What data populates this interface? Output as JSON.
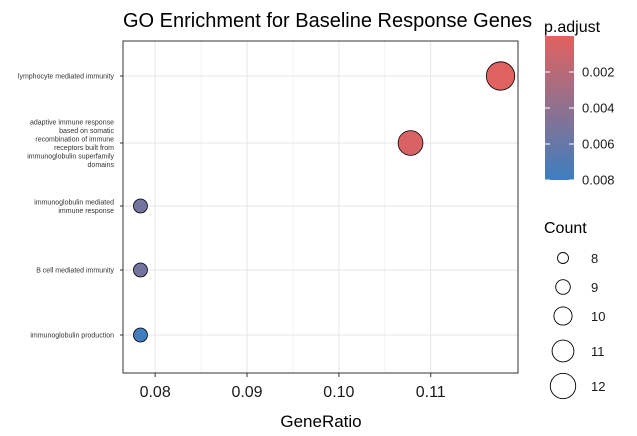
{
  "chart_data": {
    "type": "scatter",
    "title": "GO Enrichment for Baseline Response Genes",
    "xlabel": "GeneRatio",
    "ylabel": "",
    "xlim": [
      0.0765,
      0.1195
    ],
    "xticks": [
      {
        "value": 0.08,
        "label": "0.08"
      },
      {
        "value": 0.09,
        "label": "0.09"
      },
      {
        "value": 0.1,
        "label": "0.10"
      },
      {
        "value": 0.11,
        "label": "0.11"
      }
    ],
    "categories": [
      "lymphocyte mediated immunity",
      "adaptive immune response based on somatic recombination of immune receptors built from immunoglobulin superfamily domains",
      "immunoglobulin mediated immune response",
      "B cell mediated immunity",
      "immunoglobulin production"
    ],
    "category_lines": [
      [
        "lymphocyte mediated immunity"
      ],
      [
        "adaptive immune response",
        "based on somatic",
        "recombination of immune",
        "receptors built from",
        "immunoglobulin superfamily",
        "domains"
      ],
      [
        "immunoglobulin mediated",
        "immune response"
      ],
      [
        "B cell mediated immunity"
      ],
      [
        "immunoglobulin production"
      ]
    ],
    "points": [
      {
        "term": "lymphocyte mediated immunity",
        "x": 0.1176,
        "count": 12,
        "p_adjust": 0.0001
      },
      {
        "term": "adaptive immune response based on somatic recombination of immune receptors built from immunoglobulin superfamily domains",
        "x": 0.1078,
        "count": 11,
        "p_adjust": 0.0004
      },
      {
        "term": "immunoglobulin mediated immune response",
        "x": 0.0784,
        "count": 8,
        "p_adjust": 0.0053
      },
      {
        "term": "B cell mediated immunity",
        "x": 0.0784,
        "count": 8,
        "p_adjust": 0.0053
      },
      {
        "term": "immunoglobulin production",
        "x": 0.0784,
        "count": 8,
        "p_adjust": 0.0078
      }
    ],
    "color_legend": {
      "title": "p.adjust",
      "range": [
        0.0,
        0.008
      ],
      "ticks": [
        {
          "value": 0.002,
          "label": "0.002"
        },
        {
          "value": 0.004,
          "label": "0.004"
        },
        {
          "value": 0.006,
          "label": "0.006"
        },
        {
          "value": 0.008,
          "label": "0.008"
        }
      ],
      "low_color": "#E1625F",
      "high_color": "#3D7FBF"
    },
    "size_legend": {
      "title": "Count",
      "entries": [
        {
          "value": 8,
          "label": "8"
        },
        {
          "value": 9,
          "label": "9"
        },
        {
          "value": 10,
          "label": "10"
        },
        {
          "value": 11,
          "label": "11"
        },
        {
          "value": 12,
          "label": "12"
        }
      ]
    },
    "grid": true,
    "legend_position": "right"
  }
}
